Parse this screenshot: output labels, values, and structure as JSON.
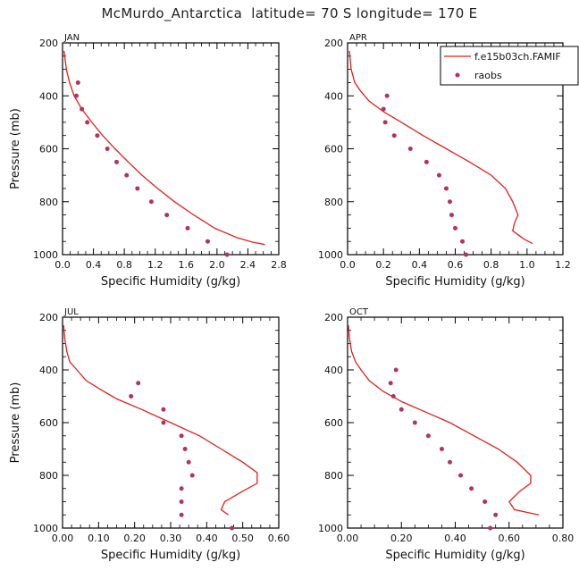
{
  "page": {
    "title": "McMurdo_Antarctica  latitude= 70 S longitude= 170 E"
  },
  "legend": {
    "model_label": "f.e15b03ch.FAMIF",
    "obs_label": "raobs",
    "model_color": "#e0201c",
    "obs_color": "#b5315f"
  },
  "chart_data": [
    {
      "type": "line",
      "panel": "JAN",
      "xlabel": "Specific Humidity (g/kg)",
      "ylabel": "Pressure (mb)",
      "xlim": [
        0,
        2.8
      ],
      "ylim": [
        200,
        1000
      ],
      "y_inverted": false,
      "xticks": [
        "0.0",
        "0.4",
        "0.8",
        "1.2",
        "1.6",
        "2.0",
        "2.4",
        "2.8"
      ],
      "yticks": [
        "200",
        "400",
        "600",
        "800",
        "1000"
      ],
      "model": [
        [
          0.02,
          230
        ],
        [
          0.05,
          300
        ],
        [
          0.09,
          350
        ],
        [
          0.15,
          400
        ],
        [
          0.25,
          450
        ],
        [
          0.38,
          500
        ],
        [
          0.52,
          550
        ],
        [
          0.68,
          600
        ],
        [
          0.85,
          650
        ],
        [
          1.03,
          700
        ],
        [
          1.23,
          750
        ],
        [
          1.45,
          800
        ],
        [
          1.7,
          850
        ],
        [
          1.97,
          900
        ],
        [
          2.25,
          935
        ],
        [
          2.45,
          952
        ],
        [
          2.62,
          962
        ]
      ],
      "obs": [
        [
          0.2,
          350
        ],
        [
          0.18,
          400
        ],
        [
          0.25,
          450
        ],
        [
          0.32,
          500
        ],
        [
          0.45,
          550
        ],
        [
          0.58,
          600
        ],
        [
          0.7,
          650
        ],
        [
          0.83,
          700
        ],
        [
          0.97,
          750
        ],
        [
          1.15,
          800
        ],
        [
          1.35,
          850
        ],
        [
          1.62,
          900
        ],
        [
          1.88,
          950
        ],
        [
          2.13,
          1000
        ]
      ]
    },
    {
      "type": "line",
      "panel": "APR",
      "xlabel": "Specific Humidity (g/kg)",
      "ylabel": "",
      "xlim": [
        0,
        1.2
      ],
      "ylim": [
        200,
        1000
      ],
      "y_inverted": false,
      "xticks": [
        "0.0",
        "0.2",
        "0.4",
        "0.6",
        "0.8",
        "1.0",
        "1.2"
      ],
      "yticks": [
        "200",
        "400",
        "600",
        "800",
        "1000"
      ],
      "model": [
        [
          0.01,
          230
        ],
        [
          0.02,
          300
        ],
        [
          0.04,
          350
        ],
        [
          0.07,
          380
        ],
        [
          0.12,
          420
        ],
        [
          0.2,
          460
        ],
        [
          0.3,
          500
        ],
        [
          0.42,
          550
        ],
        [
          0.55,
          600
        ],
        [
          0.68,
          650
        ],
        [
          0.8,
          700
        ],
        [
          0.88,
          750
        ],
        [
          0.92,
          800
        ],
        [
          0.95,
          850
        ],
        [
          0.93,
          880
        ],
        [
          0.92,
          910
        ],
        [
          0.98,
          940
        ],
        [
          1.03,
          958
        ]
      ],
      "obs": [
        [
          0.22,
          400
        ],
        [
          0.2,
          450
        ],
        [
          0.21,
          500
        ],
        [
          0.26,
          550
        ],
        [
          0.35,
          600
        ],
        [
          0.44,
          650
        ],
        [
          0.51,
          700
        ],
        [
          0.55,
          750
        ],
        [
          0.57,
          800
        ],
        [
          0.58,
          850
        ],
        [
          0.6,
          900
        ],
        [
          0.64,
          950
        ],
        [
          0.66,
          1000
        ]
      ]
    },
    {
      "type": "line",
      "panel": "JUL",
      "xlabel": "Specific Humidity (g/kg)",
      "ylabel": "Pressure (mb)",
      "xlim": [
        0,
        0.6
      ],
      "ylim": [
        200,
        1000
      ],
      "y_inverted": false,
      "xticks": [
        "0.00",
        "0.10",
        "0.20",
        "0.30",
        "0.40",
        "0.50",
        "0.60"
      ],
      "yticks": [
        "200",
        "400",
        "600",
        "800",
        "1000"
      ],
      "model": [
        [
          0.003,
          230
        ],
        [
          0.006,
          280
        ],
        [
          0.012,
          330
        ],
        [
          0.02,
          370
        ],
        [
          0.04,
          400
        ],
        [
          0.065,
          440
        ],
        [
          0.1,
          470
        ],
        [
          0.15,
          510
        ],
        [
          0.22,
          550
        ],
        [
          0.3,
          600
        ],
        [
          0.38,
          650
        ],
        [
          0.44,
          700
        ],
        [
          0.5,
          750
        ],
        [
          0.54,
          790
        ],
        [
          0.54,
          830
        ],
        [
          0.5,
          860
        ],
        [
          0.45,
          900
        ],
        [
          0.44,
          930
        ],
        [
          0.46,
          950
        ]
      ],
      "obs": [
        [
          0.21,
          450
        ],
        [
          0.19,
          500
        ],
        [
          0.28,
          550
        ],
        [
          0.28,
          600
        ],
        [
          0.33,
          650
        ],
        [
          0.34,
          700
        ],
        [
          0.35,
          750
        ],
        [
          0.36,
          800
        ],
        [
          0.33,
          850
        ],
        [
          0.33,
          900
        ],
        [
          0.33,
          950
        ],
        [
          0.47,
          1000
        ]
      ]
    },
    {
      "type": "line",
      "panel": "OCT",
      "xlabel": "Specific Humidity (g/kg)",
      "ylabel": "",
      "xlim": [
        0,
        0.8
      ],
      "ylim": [
        200,
        1000
      ],
      "y_inverted": false,
      "xticks": [
        "0.00",
        "0.20",
        "0.40",
        "0.60",
        "0.80"
      ],
      "yticks": [
        "200",
        "400",
        "600",
        "800",
        "1000"
      ],
      "model": [
        [
          0.003,
          230
        ],
        [
          0.007,
          280
        ],
        [
          0.015,
          330
        ],
        [
          0.03,
          370
        ],
        [
          0.05,
          400
        ],
        [
          0.08,
          440
        ],
        [
          0.13,
          480
        ],
        [
          0.2,
          520
        ],
        [
          0.29,
          560
        ],
        [
          0.38,
          600
        ],
        [
          0.47,
          650
        ],
        [
          0.56,
          700
        ],
        [
          0.63,
          750
        ],
        [
          0.68,
          800
        ],
        [
          0.68,
          830
        ],
        [
          0.64,
          860
        ],
        [
          0.6,
          900
        ],
        [
          0.62,
          930
        ],
        [
          0.71,
          950
        ]
      ],
      "obs": [
        [
          0.18,
          400
        ],
        [
          0.16,
          450
        ],
        [
          0.17,
          500
        ],
        [
          0.2,
          550
        ],
        [
          0.25,
          600
        ],
        [
          0.3,
          650
        ],
        [
          0.35,
          700
        ],
        [
          0.38,
          750
        ],
        [
          0.42,
          800
        ],
        [
          0.46,
          850
        ],
        [
          0.51,
          900
        ],
        [
          0.55,
          950
        ],
        [
          0.53,
          1000
        ]
      ]
    }
  ]
}
